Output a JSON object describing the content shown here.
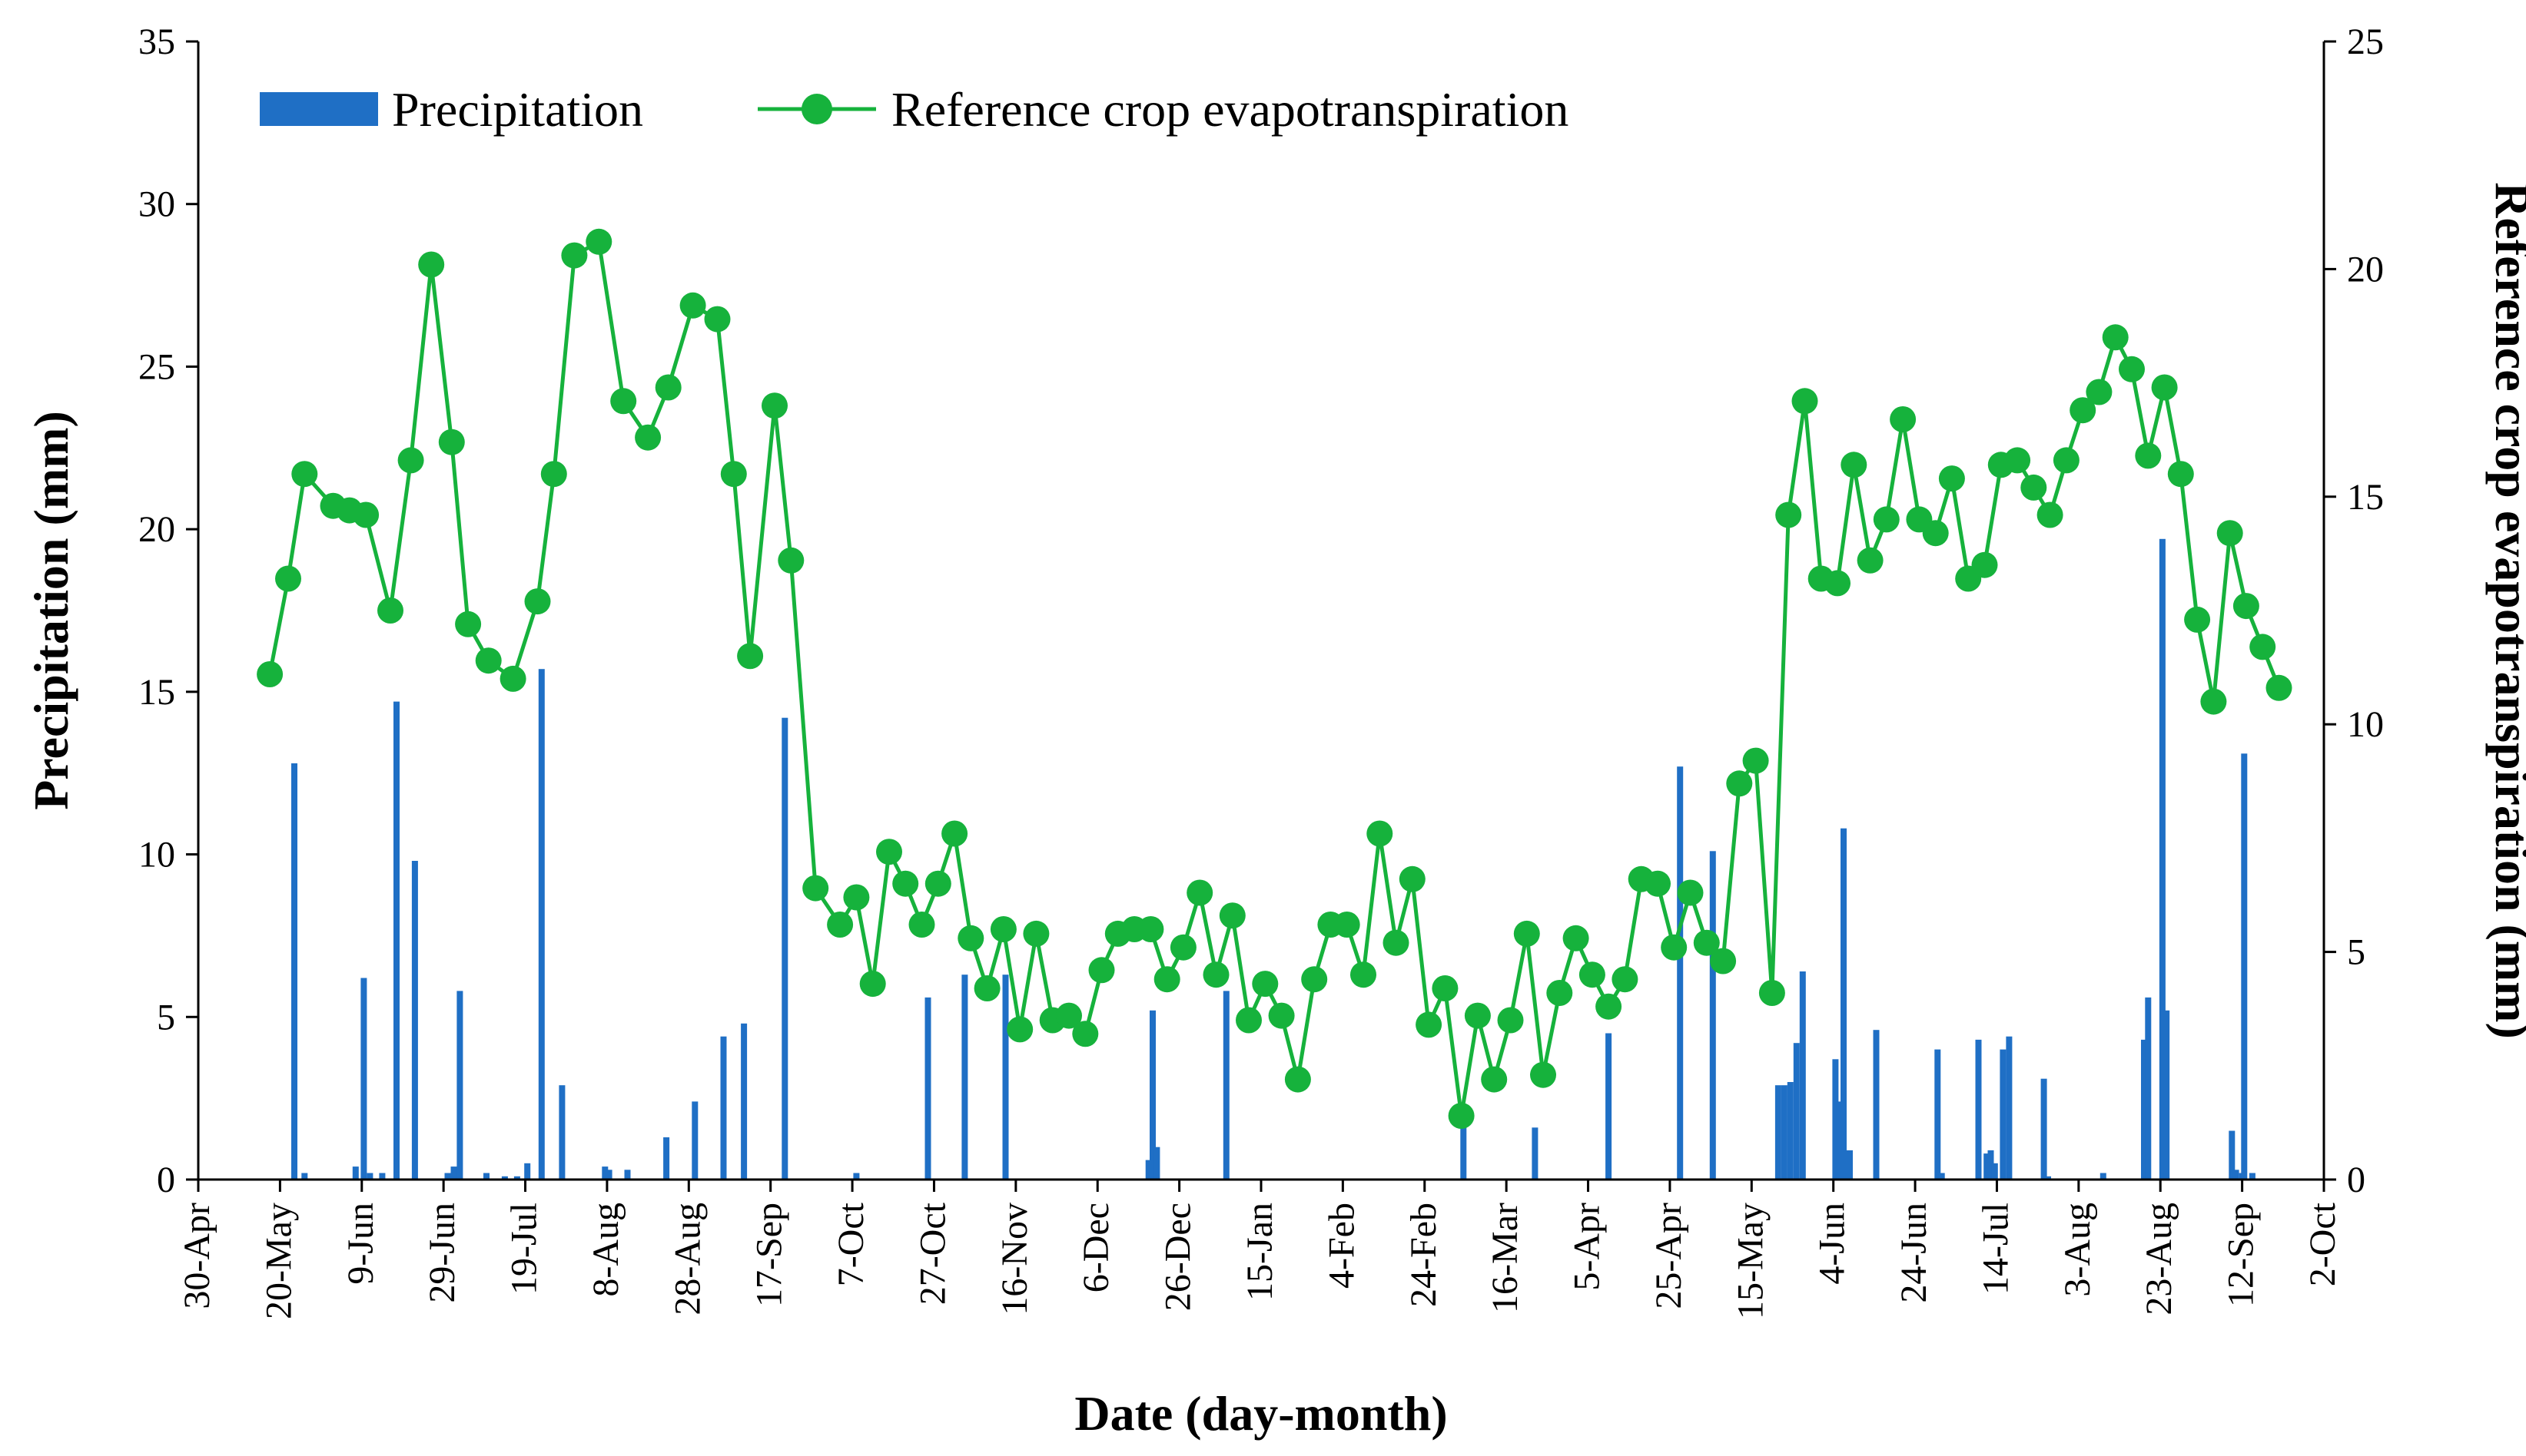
{
  "chart_data": {
    "type": "bar+line",
    "xlabel": "Date (day-month)",
    "ylabel_left": "Precipitation (mm)",
    "ylabel_right": "Reference crop evapotranspiration (mm)",
    "ylim_left": [
      0,
      35
    ],
    "ylim_right": [
      0,
      25
    ],
    "yticks_left": [
      "0",
      "5",
      "10",
      "15",
      "20",
      "25",
      "30",
      "35"
    ],
    "yticks_right": [
      "0",
      "5",
      "10",
      "15",
      "20",
      "25"
    ],
    "x_range_days": [
      0,
      520
    ],
    "x_ticks": [
      {
        "day": 0,
        "label": "30-Apr"
      },
      {
        "day": 20,
        "label": "20-May"
      },
      {
        "day": 40,
        "label": "9-Jun"
      },
      {
        "day": 60,
        "label": "29-Jun"
      },
      {
        "day": 80,
        "label": "19-Jul"
      },
      {
        "day": 100,
        "label": "8-Aug"
      },
      {
        "day": 120,
        "label": "28-Aug"
      },
      {
        "day": 140,
        "label": "17-Sep"
      },
      {
        "day": 160,
        "label": "7-Oct"
      },
      {
        "day": 180,
        "label": "27-Oct"
      },
      {
        "day": 200,
        "label": "16-Nov"
      },
      {
        "day": 220,
        "label": "6-Dec"
      },
      {
        "day": 240,
        "label": "26-Dec"
      },
      {
        "day": 260,
        "label": "15-Jan"
      },
      {
        "day": 280,
        "label": "4-Feb"
      },
      {
        "day": 300,
        "label": "24-Feb"
      },
      {
        "day": 320,
        "label": "16-Mar"
      },
      {
        "day": 340,
        "label": "5-Apr"
      },
      {
        "day": 360,
        "label": "25-Apr"
      },
      {
        "day": 380,
        "label": "15-May"
      },
      {
        "day": 400,
        "label": "4-Jun"
      },
      {
        "day": 420,
        "label": "24-Jun"
      },
      {
        "day": 440,
        "label": "14-Jul"
      },
      {
        "day": 460,
        "label": "3-Aug"
      },
      {
        "day": 480,
        "label": "23-Aug"
      },
      {
        "day": 500,
        "label": "12-Sep"
      },
      {
        "day": 520,
        "label": "2-Oct"
      }
    ],
    "legend": {
      "precip_label": "Precipitation",
      "et_label": "Reference crop evapotranspiration",
      "placement": "top-left"
    },
    "colors": {
      "precip": "#1f6fc5",
      "et": "#16b23c"
    },
    "series": [
      {
        "name": "Precipitation",
        "kind": "bar",
        "axis": "left",
        "points": [
          {
            "day": 23.5,
            "value": 12.8
          },
          {
            "day": 26,
            "value": 0.2
          },
          {
            "day": 38.5,
            "value": 0.4
          },
          {
            "day": 40.5,
            "value": 6.2
          },
          {
            "day": 42,
            "value": 0.2
          },
          {
            "day": 45,
            "value": 0.2
          },
          {
            "day": 48.5,
            "value": 14.7
          },
          {
            "day": 53,
            "value": 9.8
          },
          {
            "day": 61,
            "value": 0.2
          },
          {
            "day": 62.5,
            "value": 0.4
          },
          {
            "day": 64,
            "value": 5.8
          },
          {
            "day": 70.5,
            "value": 0.2
          },
          {
            "day": 75,
            "value": 0.1
          },
          {
            "day": 78,
            "value": 0.1
          },
          {
            "day": 80.5,
            "value": 0.5
          },
          {
            "day": 84,
            "value": 15.7
          },
          {
            "day": 89,
            "value": 2.9
          },
          {
            "day": 99.5,
            "value": 0.4
          },
          {
            "day": 100.5,
            "value": 0.3
          },
          {
            "day": 105,
            "value": 0.3
          },
          {
            "day": 114.5,
            "value": 1.3
          },
          {
            "day": 121.5,
            "value": 2.4
          },
          {
            "day": 128.5,
            "value": 4.4
          },
          {
            "day": 133.5,
            "value": 4.8
          },
          {
            "day": 143.5,
            "value": 14.2
          },
          {
            "day": 161,
            "value": 0.2
          },
          {
            "day": 178.5,
            "value": 5.6
          },
          {
            "day": 187.5,
            "value": 6.3
          },
          {
            "day": 197.5,
            "value": 6.3
          },
          {
            "day": 232.5,
            "value": 0.6
          },
          {
            "day": 233.5,
            "value": 5.2
          },
          {
            "day": 234.5,
            "value": 1.0
          },
          {
            "day": 251.5,
            "value": 5.8
          },
          {
            "day": 309.5,
            "value": 1.6
          },
          {
            "day": 327,
            "value": 1.6
          },
          {
            "day": 345,
            "value": 4.5
          },
          {
            "day": 362.5,
            "value": 12.7
          },
          {
            "day": 370.5,
            "value": 10.1
          },
          {
            "day": 386.5,
            "value": 2.9
          },
          {
            "day": 388,
            "value": 2.9
          },
          {
            "day": 389.5,
            "value": 3.0
          },
          {
            "day": 391,
            "value": 4.2
          },
          {
            "day": 392.5,
            "value": 6.4
          },
          {
            "day": 400.5,
            "value": 3.7
          },
          {
            "day": 401.5,
            "value": 2.4
          },
          {
            "day": 402.5,
            "value": 10.8
          },
          {
            "day": 404,
            "value": 0.9
          },
          {
            "day": 410.5,
            "value": 4.6
          },
          {
            "day": 425.5,
            "value": 4.0
          },
          {
            "day": 426.5,
            "value": 0.2
          },
          {
            "day": 435.5,
            "value": 4.3
          },
          {
            "day": 437.5,
            "value": 0.8
          },
          {
            "day": 438.5,
            "value": 0.9
          },
          {
            "day": 439.5,
            "value": 0.5
          },
          {
            "day": 441.5,
            "value": 4.0
          },
          {
            "day": 443,
            "value": 4.4
          },
          {
            "day": 451.5,
            "value": 3.1
          },
          {
            "day": 452.5,
            "value": 0.1
          },
          {
            "day": 466,
            "value": 0.2
          },
          {
            "day": 476,
            "value": 4.3
          },
          {
            "day": 477,
            "value": 5.6
          },
          {
            "day": 480.5,
            "value": 19.7
          },
          {
            "day": 481.5,
            "value": 5.2
          },
          {
            "day": 497.5,
            "value": 1.5
          },
          {
            "day": 498.5,
            "value": 0.3
          },
          {
            "day": 500,
            "value": 0.2
          },
          {
            "day": 500.5,
            "value": 13.1
          },
          {
            "day": 502.5,
            "value": 0.2
          }
        ]
      },
      {
        "name": "Reference crop evapotranspiration",
        "kind": "line",
        "axis": "right",
        "points": [
          {
            "day": 17.5,
            "value": 11.1
          },
          {
            "day": 22,
            "value": 13.2
          },
          {
            "day": 26,
            "value": 15.5
          },
          {
            "day": 33,
            "value": 14.8
          },
          {
            "day": 37,
            "value": 14.7
          },
          {
            "day": 41,
            "value": 14.6
          },
          {
            "day": 47,
            "value": 12.5
          },
          {
            "day": 52,
            "value": 15.8
          },
          {
            "day": 57,
            "value": 20.1
          },
          {
            "day": 62,
            "value": 16.2
          },
          {
            "day": 66,
            "value": 12.2
          },
          {
            "day": 71,
            "value": 11.4
          },
          {
            "day": 77,
            "value": 11.0
          },
          {
            "day": 83,
            "value": 12.7
          },
          {
            "day": 87,
            "value": 15.5
          },
          {
            "day": 92,
            "value": 20.3
          },
          {
            "day": 98,
            "value": 20.6
          },
          {
            "day": 104,
            "value": 17.1
          },
          {
            "day": 110,
            "value": 16.3
          },
          {
            "day": 115,
            "value": 17.4
          },
          {
            "day": 121,
            "value": 19.2
          },
          {
            "day": 127,
            "value": 18.9
          },
          {
            "day": 131,
            "value": 15.5
          },
          {
            "day": 135,
            "value": 11.5
          },
          {
            "day": 141,
            "value": 17.0
          },
          {
            "day": 145,
            "value": 13.6
          },
          {
            "day": 151,
            "value": 6.4
          },
          {
            "day": 157,
            "value": 5.6
          },
          {
            "day": 161,
            "value": 6.2
          },
          {
            "day": 165,
            "value": 4.3
          },
          {
            "day": 169,
            "value": 7.2
          },
          {
            "day": 173,
            "value": 6.5
          },
          {
            "day": 177,
            "value": 5.6
          },
          {
            "day": 181,
            "value": 6.5
          },
          {
            "day": 185,
            "value": 7.6
          },
          {
            "day": 189,
            "value": 5.3
          },
          {
            "day": 193,
            "value": 4.2
          },
          {
            "day": 197,
            "value": 5.5
          },
          {
            "day": 201,
            "value": 3.3
          },
          {
            "day": 205,
            "value": 5.4
          },
          {
            "day": 209,
            "value": 3.5
          },
          {
            "day": 213,
            "value": 3.6
          },
          {
            "day": 217,
            "value": 3.2
          },
          {
            "day": 221,
            "value": 4.6
          },
          {
            "day": 225,
            "value": 5.4
          },
          {
            "day": 229,
            "value": 5.5
          },
          {
            "day": 233,
            "value": 5.5
          },
          {
            "day": 237,
            "value": 4.4
          },
          {
            "day": 241,
            "value": 5.1
          },
          {
            "day": 245,
            "value": 6.3
          },
          {
            "day": 249,
            "value": 4.5
          },
          {
            "day": 253,
            "value": 5.8
          },
          {
            "day": 257,
            "value": 3.5
          },
          {
            "day": 261,
            "value": 4.3
          },
          {
            "day": 265,
            "value": 3.6
          },
          {
            "day": 269,
            "value": 2.2
          },
          {
            "day": 273,
            "value": 4.4
          },
          {
            "day": 277,
            "value": 5.6
          },
          {
            "day": 281,
            "value": 5.6
          },
          {
            "day": 285,
            "value": 4.5
          },
          {
            "day": 289,
            "value": 7.6
          },
          {
            "day": 293,
            "value": 5.2
          },
          {
            "day": 297,
            "value": 6.6
          },
          {
            "day": 301,
            "value": 3.4
          },
          {
            "day": 305,
            "value": 4.2
          },
          {
            "day": 309,
            "value": 1.4
          },
          {
            "day": 313,
            "value": 3.6
          },
          {
            "day": 317,
            "value": 2.2
          },
          {
            "day": 321,
            "value": 3.5
          },
          {
            "day": 325,
            "value": 5.4
          },
          {
            "day": 329,
            "value": 2.3
          },
          {
            "day": 333,
            "value": 4.1
          },
          {
            "day": 337,
            "value": 5.3
          },
          {
            "day": 341,
            "value": 4.5
          },
          {
            "day": 345,
            "value": 3.8
          },
          {
            "day": 349,
            "value": 4.4
          },
          {
            "day": 353,
            "value": 6.6
          },
          {
            "day": 357,
            "value": 6.5
          },
          {
            "day": 361,
            "value": 5.1
          },
          {
            "day": 365,
            "value": 6.3
          },
          {
            "day": 369,
            "value": 5.2
          },
          {
            "day": 373,
            "value": 4.8
          },
          {
            "day": 377,
            "value": 8.7
          },
          {
            "day": 381,
            "value": 9.2
          },
          {
            "day": 385,
            "value": 4.1
          },
          {
            "day": 389,
            "value": 14.6
          },
          {
            "day": 393,
            "value": 17.1
          },
          {
            "day": 397,
            "value": 13.2
          },
          {
            "day": 401,
            "value": 13.1
          },
          {
            "day": 405,
            "value": 15.7
          },
          {
            "day": 409,
            "value": 13.6
          },
          {
            "day": 413,
            "value": 14.5
          },
          {
            "day": 417,
            "value": 16.7
          },
          {
            "day": 421,
            "value": 14.5
          },
          {
            "day": 425,
            "value": 14.2
          },
          {
            "day": 429,
            "value": 15.4
          },
          {
            "day": 433,
            "value": 13.2
          },
          {
            "day": 437,
            "value": 13.5
          },
          {
            "day": 441,
            "value": 15.7
          },
          {
            "day": 445,
            "value": 15.8
          },
          {
            "day": 449,
            "value": 15.2
          },
          {
            "day": 453,
            "value": 14.6
          },
          {
            "day": 457,
            "value": 15.8
          },
          {
            "day": 461,
            "value": 16.9
          },
          {
            "day": 465,
            "value": 17.3
          },
          {
            "day": 469,
            "value": 18.5
          },
          {
            "day": 473,
            "value": 17.8
          },
          {
            "day": 477,
            "value": 15.9
          },
          {
            "day": 481,
            "value": 17.4
          },
          {
            "day": 485,
            "value": 15.5
          },
          {
            "day": 489,
            "value": 12.3
          },
          {
            "day": 493,
            "value": 10.5
          },
          {
            "day": 497,
            "value": 14.2
          },
          {
            "day": 501,
            "value": 12.6
          },
          {
            "day": 505,
            "value": 11.7
          },
          {
            "day": 509,
            "value": 10.8
          }
        ]
      }
    ]
  }
}
